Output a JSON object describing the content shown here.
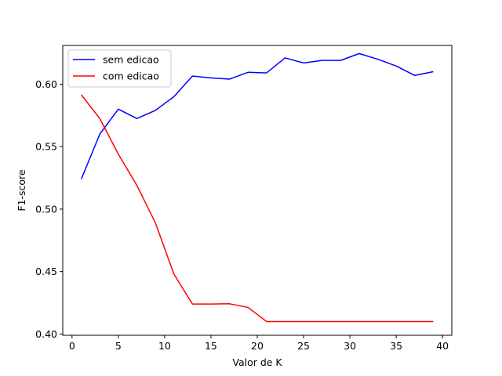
{
  "chart_data": {
    "type": "line",
    "title": "",
    "xlabel": "Valor de K",
    "ylabel": "F1-score",
    "xlim": [
      -1,
      41
    ],
    "ylim": [
      0.399,
      0.631
    ],
    "xticks": [
      0,
      5,
      10,
      15,
      20,
      25,
      30,
      35,
      40
    ],
    "yticks": [
      0.4,
      0.45,
      0.5,
      0.55,
      0.6
    ],
    "xtick_labels": [
      "0",
      "5",
      "10",
      "15",
      "20",
      "25",
      "30",
      "35",
      "40"
    ],
    "ytick_labels": [
      "0.40",
      "0.45",
      "0.50",
      "0.55",
      "0.60"
    ],
    "grid": false,
    "legend_position": "upper-left",
    "x": [
      1,
      3,
      5,
      7,
      9,
      11,
      13,
      15,
      17,
      19,
      21,
      23,
      25,
      27,
      29,
      31,
      33,
      35,
      37,
      39
    ],
    "series": [
      {
        "name": "sem edicao",
        "color": "#0000ff",
        "values": [
          0.524,
          0.56,
          0.58,
          0.5725,
          0.579,
          0.59,
          0.6065,
          0.605,
          0.604,
          0.6095,
          0.609,
          0.621,
          0.617,
          0.619,
          0.619,
          0.6245,
          0.62,
          0.6145,
          0.607,
          0.61
        ]
      },
      {
        "name": "com edicao",
        "color": "#ff0000",
        "values": [
          0.5915,
          0.5725,
          0.544,
          0.519,
          0.489,
          0.448,
          0.424,
          0.424,
          0.4242,
          0.4213,
          0.41,
          0.41,
          0.41,
          0.41,
          0.41,
          0.41,
          0.41,
          0.41,
          0.41,
          0.41
        ]
      }
    ]
  }
}
